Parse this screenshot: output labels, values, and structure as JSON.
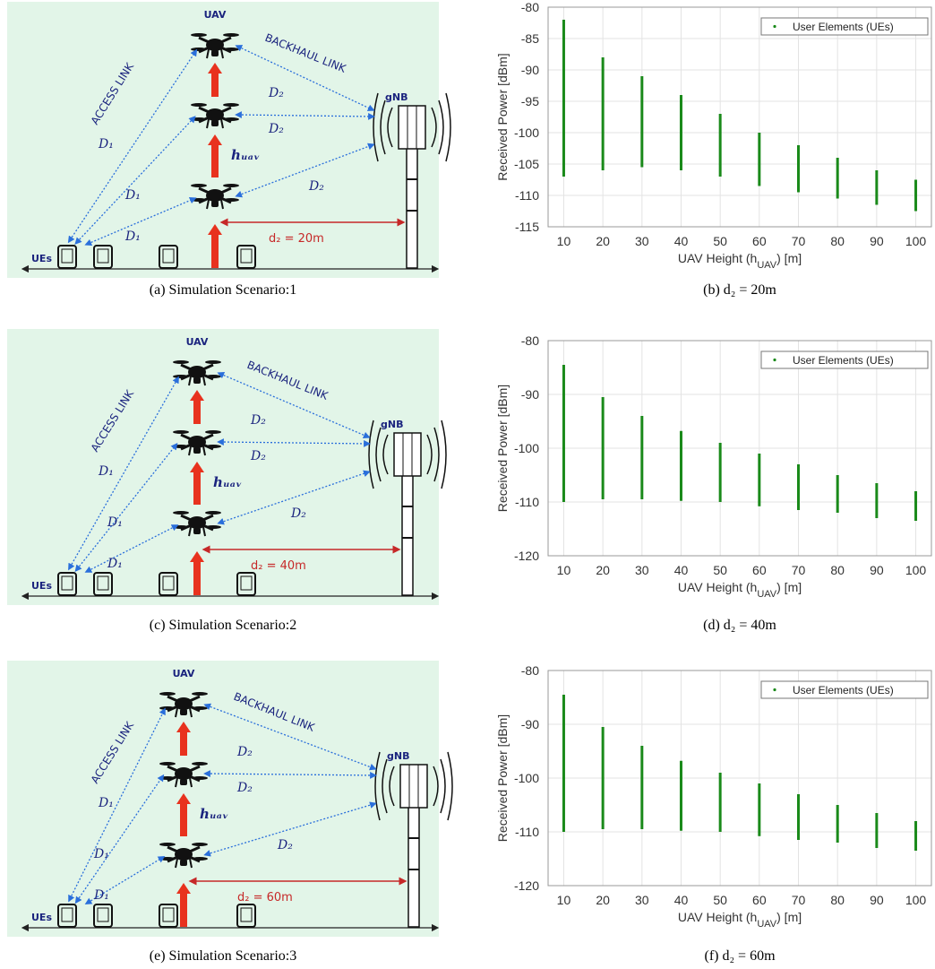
{
  "diagrams": [
    {
      "uav": "UAV",
      "backhaul": "BACKHAUL LINK",
      "access": "ACCESS LINK",
      "gnb": "gNB",
      "ues": "UEs",
      "d1": [
        "D₁",
        "D₁",
        "D₁"
      ],
      "d2": [
        "D₂",
        "D₂",
        "D₂"
      ],
      "h_uav": "hᵤₐᵥ",
      "distance": "d₂ = 20m",
      "caption": "(a) Simulation Scenario:1"
    },
    {
      "uav": "UAV",
      "backhaul": "BACKHAUL LINK",
      "access": "ACCESS LINK",
      "gnb": "gNB",
      "ues": "UEs",
      "d1": [
        "D₁",
        "D₁",
        "D₁"
      ],
      "d2": [
        "D₂",
        "D₂",
        "D₂"
      ],
      "h_uav": "hᵤₐᵥ",
      "distance": "d₂ = 40m",
      "caption": "(c) Simulation Scenario:2"
    },
    {
      "uav": "UAV",
      "backhaul": "BACKHAUL LINK",
      "access": "ACCESS LINK",
      "gnb": "gNB",
      "ues": "UEs",
      "d1": [
        "D₁",
        "D₁",
        "D₁"
      ],
      "d2": [
        "D₂",
        "D₂",
        "D₂"
      ],
      "h_uav": "hᵤₐᵥ",
      "distance": "d₂ = 60m",
      "caption": "(e) Simulation Scenario:3"
    }
  ],
  "chart_data": [
    {
      "type": "range",
      "caption": "(b) d₂ = 20m",
      "ylabel": "Received Power [dBm]",
      "xlabel": [
        "UAV Height (h",
        "UAV",
        ") [m]"
      ],
      "xlim": [
        6,
        104
      ],
      "ylim": [
        -115,
        -80
      ],
      "xticks": [
        10,
        20,
        30,
        40,
        50,
        60,
        70,
        80,
        90,
        100
      ],
      "yticks": [
        -115,
        -110,
        -105,
        -100,
        -95,
        -90,
        -85,
        -80
      ],
      "grid": true,
      "legend": "upper right",
      "series": [
        {
          "name": "User Elements (UEs)",
          "color": "#1a8a1a",
          "x": [
            10,
            20,
            30,
            40,
            50,
            60,
            70,
            80,
            90,
            100
          ],
          "high": [
            -82,
            -88,
            -91,
            -94,
            -97,
            -100,
            -102,
            -104,
            -106,
            -107.5
          ],
          "low": [
            -107,
            -106,
            -105.5,
            -106,
            -107,
            -108.5,
            -109.5,
            -110.5,
            -111.5,
            -112.5
          ]
        }
      ]
    },
    {
      "type": "range",
      "caption": "(d) d₂ = 40m",
      "ylabel": "Received Power [dBm]",
      "xlabel": [
        "UAV Height (h",
        "UAV",
        ") [m]"
      ],
      "xlim": [
        6,
        104
      ],
      "ylim": [
        -120,
        -80
      ],
      "xticks": [
        10,
        20,
        30,
        40,
        50,
        60,
        70,
        80,
        90,
        100
      ],
      "yticks": [
        -120,
        -110,
        -100,
        -90,
        -80
      ],
      "grid": true,
      "legend": "upper right",
      "series": [
        {
          "name": "User Elements (UEs)",
          "color": "#1a8a1a",
          "x": [
            10,
            20,
            30,
            40,
            50,
            60,
            70,
            80,
            90,
            100
          ],
          "high": [
            -84.5,
            -90.5,
            -94,
            -96.8,
            -99,
            -101,
            -103,
            -105,
            -106.5,
            -108
          ],
          "low": [
            -110,
            -109.5,
            -109.5,
            -109.8,
            -110,
            -110.8,
            -111.5,
            -112,
            -113,
            -113.5
          ]
        }
      ]
    },
    {
      "type": "range",
      "caption": "(f) d₂ = 60m",
      "ylabel": "Received Power [dBm]",
      "xlabel": [
        "UAV Height (h",
        "UAV",
        ") [m]"
      ],
      "xlim": [
        6,
        104
      ],
      "ylim": [
        -120,
        -80
      ],
      "xticks": [
        10,
        20,
        30,
        40,
        50,
        60,
        70,
        80,
        90,
        100
      ],
      "yticks": [
        -120,
        -110,
        -100,
        -90,
        -80
      ],
      "grid": true,
      "legend": "upper right",
      "series": [
        {
          "name": "User Elements (UEs)",
          "color": "#1a8a1a",
          "x": [
            10,
            20,
            30,
            40,
            50,
            60,
            70,
            80,
            90,
            100
          ],
          "high": [
            -84.5,
            -90.5,
            -94,
            -96.8,
            -99,
            -101,
            -103,
            -105,
            -106.5,
            -108
          ],
          "low": [
            -110,
            -109.5,
            -109.5,
            -109.8,
            -110,
            -110.8,
            -111.5,
            -112,
            -113,
            -113.5
          ]
        }
      ]
    }
  ]
}
